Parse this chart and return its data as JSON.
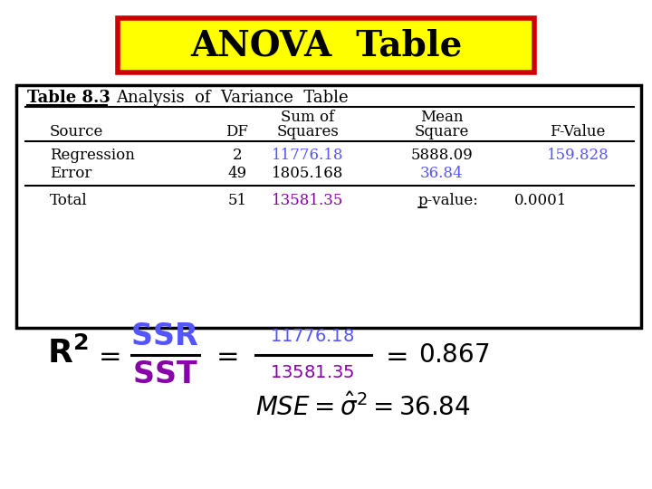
{
  "title": "ANOVA  Table",
  "title_bg": "#FFFF00",
  "title_border": "#CC0000",
  "title_fontsize": 28,
  "bg_color": "#FFFFFF",
  "table_heading": "Table 8.3",
  "table_subheading": "Analysis  of  Variance  Table",
  "rows": [
    {
      "source": "Regression",
      "df": "2",
      "ss": "11776.18",
      "ms": "5888.09",
      "fval": "159.828",
      "ss_color": "#5555FF",
      "ms_color": "#000000",
      "fval_color": "#5555FF"
    },
    {
      "source": "Error",
      "df": "49",
      "ss": "1805.168",
      "ms": "36.84",
      "fval": "",
      "ss_color": "#000000",
      "ms_color": "#5555FF",
      "fval_color": "#000000"
    },
    {
      "source": "Total",
      "df": "51",
      "ss": "13581.35",
      "ms": "",
      "fval": "",
      "ss_color": "#8800AA",
      "ms_color": "#000000",
      "fval_color": "#000000"
    }
  ],
  "pvalue_label": "p-value:",
  "pvalue": "0.0001",
  "formula_ssr_color": "#5555FF",
  "formula_sst_color": "#8800AA",
  "formula_nums_color": "#5555FF",
  "formula_denom_color": "#8800AA",
  "formula_result": "0.867",
  "mse_result": "36.84"
}
